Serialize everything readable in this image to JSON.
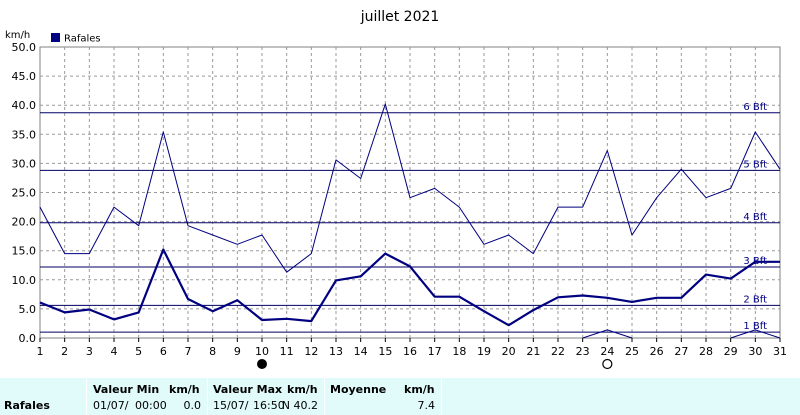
{
  "chart_data": {
    "type": "line",
    "title": "juillet 2021",
    "unit": "km/h",
    "legend": {
      "label": "Rafales",
      "color": "#000080"
    },
    "ylim": [
      0,
      50
    ],
    "y_ticks": [
      "0.0",
      "5.0",
      "10.0",
      "15.0",
      "20.0",
      "25.0",
      "30.0",
      "35.0",
      "40.0",
      "45.0",
      "50.0"
    ],
    "x": [
      1,
      2,
      3,
      4,
      5,
      6,
      7,
      8,
      9,
      10,
      11,
      12,
      13,
      14,
      15,
      16,
      17,
      18,
      19,
      20,
      21,
      22,
      23,
      24,
      25,
      26,
      27,
      28,
      29,
      30,
      31
    ],
    "grid": true,
    "series": [
      {
        "style": "thin",
        "values": [
          22.5,
          14.5,
          14.5,
          22.5,
          19.3,
          35.4,
          19.3,
          17.7,
          16.1,
          17.7,
          11.3,
          14.5,
          30.6,
          27.4,
          40.2,
          24.1,
          25.7,
          22.5,
          16.1,
          17.7,
          14.5,
          22.5,
          22.5,
          32.2,
          17.7,
          24.1,
          29.0,
          24.1,
          25.7,
          35.4,
          29.0
        ]
      },
      {
        "style": "thick",
        "values": [
          6.1,
          4.4,
          4.9,
          3.2,
          4.4,
          15.2,
          6.7,
          4.6,
          6.5,
          3.1,
          3.3,
          2.9,
          9.9,
          10.6,
          14.5,
          12.3,
          7.1,
          7.1,
          4.6,
          2.2,
          4.8,
          7.0,
          7.3,
          6.9,
          6.2,
          6.9,
          6.9,
          10.9,
          10.2,
          13.1,
          13.1
        ]
      },
      {
        "style": "thin",
        "values": [
          null,
          null,
          null,
          null,
          null,
          null,
          null,
          null,
          null,
          null,
          null,
          null,
          null,
          null,
          null,
          null,
          null,
          null,
          null,
          null,
          null,
          null,
          0,
          1.4,
          0,
          null,
          null,
          null,
          0,
          1.4,
          0
        ]
      }
    ],
    "beaufort": [
      {
        "label": "1 Bft",
        "value": 1
      },
      {
        "label": "2 Bft",
        "value": 5.6
      },
      {
        "label": "3 Bft",
        "value": 12.2
      },
      {
        "label": "4 Bft",
        "value": 19.8
      },
      {
        "label": "5 Bft",
        "value": 28.8
      },
      {
        "label": "6 Bft",
        "value": 38.7
      }
    ],
    "moon": {
      "new_day": 10,
      "full_day": 24
    }
  },
  "stats": {
    "row_label": "Rafales",
    "min_header": "Valeur Min",
    "min_unit": "km/h",
    "min_date": "01/07/",
    "min_time": "00:00",
    "min_value": "0.0",
    "max_header": "Valeur Max",
    "max_unit": "km/h",
    "max_date": "15/07/",
    "max_time": "16:50",
    "max_value": "N 40.2",
    "avg_header": "Moyenne",
    "avg_unit": "km/h",
    "avg_value": "7.4"
  }
}
